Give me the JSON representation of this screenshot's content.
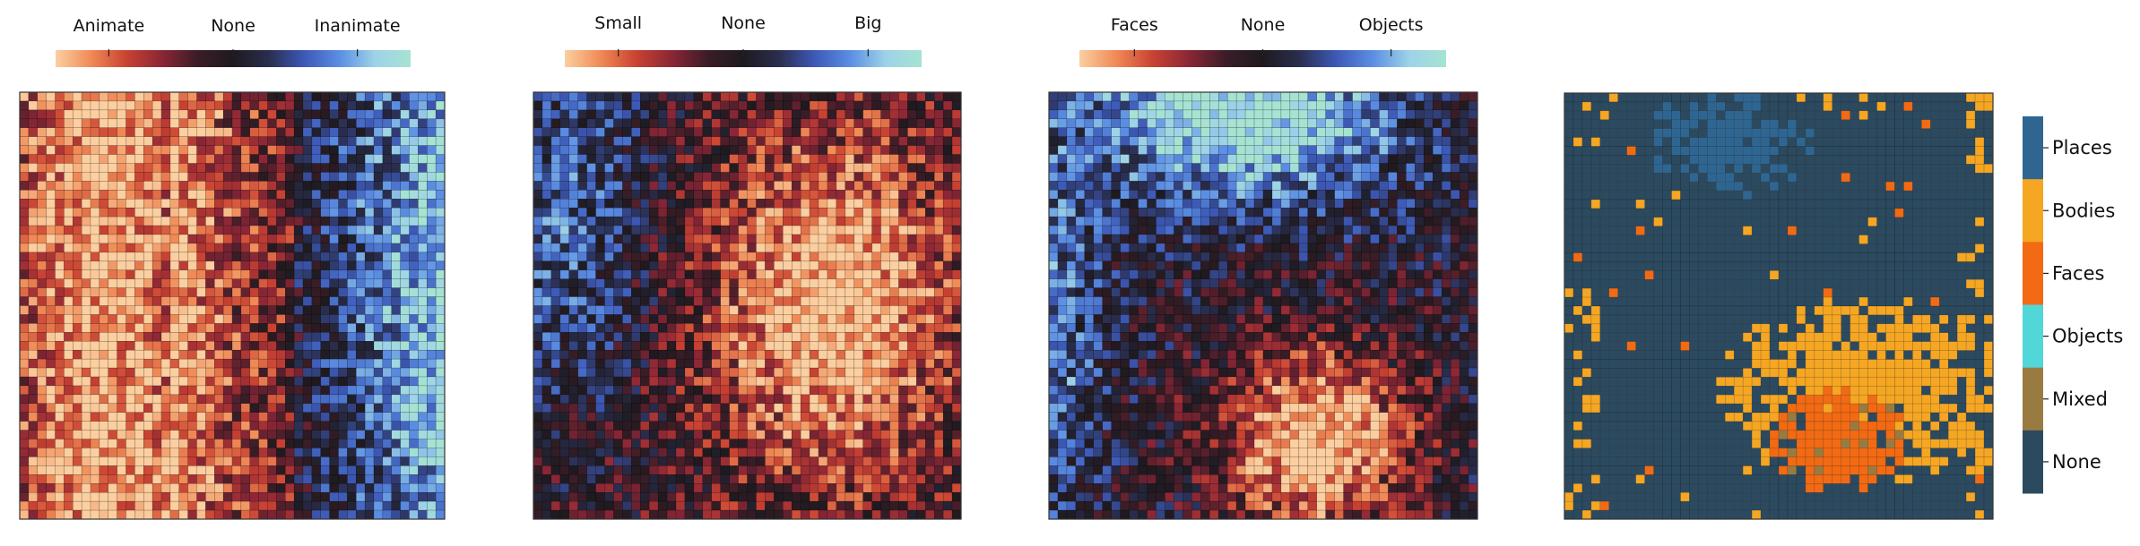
{
  "chart_data": [
    {
      "type": "heatmap",
      "description": "unlabeled map panel",
      "colorbar_ticks": [
        "Animate",
        "None",
        "Inanimate"
      ],
      "grid": "48x48",
      "pattern": "animate (left half) to inanimate (right edge)"
    },
    {
      "type": "heatmap",
      "colorbar_ticks": [
        "Small",
        "None",
        "Big"
      ],
      "grid": "48x48",
      "pattern": "small (left) to big (center-right)"
    },
    {
      "type": "heatmap",
      "colorbar_ticks": [
        "Faces",
        "None",
        "Objects"
      ],
      "grid": "48x48",
      "pattern": "objects (top), faces (bottom-center)"
    },
    {
      "type": "heatmap",
      "grid": "48x48",
      "legend": {
        "placement": "right",
        "entries": [
          {
            "label": "Places",
            "color": "#2f6691"
          },
          {
            "label": "Bodies",
            "color": "#f5a623"
          },
          {
            "label": "Faces",
            "color": "#f26a13"
          },
          {
            "label": "Objects",
            "color": "#52d7d9"
          },
          {
            "label": "Mixed",
            "color": "#997b42"
          },
          {
            "label": "None",
            "color": "#2c4a5f"
          }
        ]
      }
    }
  ],
  "colormap": {
    "stops": [
      "#fbcfa0",
      "#f08a56",
      "#c94232",
      "#8a2636",
      "#3a1d27",
      "#1e1a1f",
      "#2a2e4e",
      "#3d59b6",
      "#5b8ee3",
      "#9dd3e8",
      "#a6e3d2"
    ]
  }
}
